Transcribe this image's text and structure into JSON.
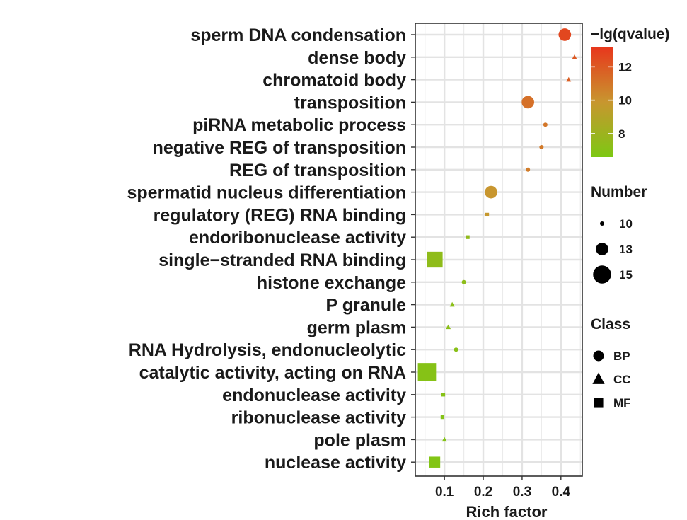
{
  "chart_data": {
    "type": "scatter",
    "xlabel": "Rich factor",
    "xticks": [
      0.1,
      0.2,
      0.3,
      0.4
    ],
    "xlim": [
      0.025,
      0.455
    ],
    "grid": true,
    "categories": [
      "sperm DNA condensation",
      "dense body",
      "chromatoid body",
      "transposition",
      "piRNA metabolic process",
      "negative REG of transposition",
      "REG of transposition",
      "spermatid nucleus differentiation",
      "regulatory (REG) RNA binding",
      "endoribonuclease activity",
      "single−stranded RNA binding",
      "histone exchange",
      "P granule",
      "germ plasm",
      "RNA Hydrolysis, endonucleolytic",
      "catalytic activity, acting on RNA",
      "endonuclease activity",
      "ribonuclease activity",
      "pole plasm",
      "nuclease activity"
    ],
    "points": [
      {
        "term": "sperm DNA condensation",
        "rich_factor": 0.41,
        "number": 13,
        "class": "BP",
        "neg_log_q": 12.6
      },
      {
        "term": "dense body",
        "rich_factor": 0.435,
        "number": 10,
        "class": "CC",
        "neg_log_q": 12.0
      },
      {
        "term": "chromatoid body",
        "rich_factor": 0.42,
        "number": 10,
        "class": "CC",
        "neg_log_q": 11.8
      },
      {
        "term": "transposition",
        "rich_factor": 0.315,
        "number": 13,
        "class": "BP",
        "neg_log_q": 11.2
      },
      {
        "term": "piRNA metabolic process",
        "rich_factor": 0.36,
        "number": 10,
        "class": "BP",
        "neg_log_q": 11.0
      },
      {
        "term": "negative REG of transposition",
        "rich_factor": 0.35,
        "number": 10,
        "class": "BP",
        "neg_log_q": 10.9
      },
      {
        "term": "REG of transposition",
        "rich_factor": 0.315,
        "number": 10,
        "class": "BP",
        "neg_log_q": 10.8
      },
      {
        "term": "spermatid nucleus differentiation",
        "rich_factor": 0.22,
        "number": 13,
        "class": "BP",
        "neg_log_q": 9.9
      },
      {
        "term": "regulatory (REG) RNA binding",
        "rich_factor": 0.21,
        "number": 10,
        "class": "MF",
        "neg_log_q": 9.8
      },
      {
        "term": "endoribonuclease activity",
        "rich_factor": 0.16,
        "number": 10,
        "class": "MF",
        "neg_log_q": 7.5
      },
      {
        "term": "single−stranded RNA binding",
        "rich_factor": 0.075,
        "number": 15,
        "class": "MF",
        "neg_log_q": 7.4
      },
      {
        "term": "histone exchange",
        "rich_factor": 0.15,
        "number": 10,
        "class": "BP",
        "neg_log_q": 7.3
      },
      {
        "term": "P granule",
        "rich_factor": 0.12,
        "number": 10,
        "class": "CC",
        "neg_log_q": 7.2
      },
      {
        "term": "germ plasm",
        "rich_factor": 0.11,
        "number": 10,
        "class": "CC",
        "neg_log_q": 7.2
      },
      {
        "term": "RNA Hydrolysis, endonucleolytic",
        "rich_factor": 0.13,
        "number": 10,
        "class": "BP",
        "neg_log_q": 7.1
      },
      {
        "term": "catalytic activity, acting on RNA",
        "rich_factor": 0.055,
        "number": 16,
        "class": "MF",
        "neg_log_q": 7.0
      },
      {
        "term": "endonuclease activity",
        "rich_factor": 0.097,
        "number": 10,
        "class": "MF",
        "neg_log_q": 7.0
      },
      {
        "term": "ribonuclease activity",
        "rich_factor": 0.095,
        "number": 10,
        "class": "MF",
        "neg_log_q": 6.9
      },
      {
        "term": "pole plasm",
        "rich_factor": 0.1,
        "number": 10,
        "class": "CC",
        "neg_log_q": 6.9
      },
      {
        "term": "nuclease activity",
        "rich_factor": 0.075,
        "number": 13,
        "class": "MF",
        "neg_log_q": 6.8
      }
    ],
    "color_legend": {
      "title": "−lg(qvalue)",
      "ticks": [
        12,
        10,
        8
      ],
      "range": [
        6.6,
        13.2
      ],
      "low_color": "#7dc813",
      "mid_color": "#c8962f",
      "high_color": "#e8361c"
    },
    "size_legend": {
      "title": "Number",
      "entries": [
        10,
        13,
        15
      ]
    },
    "class_legend": {
      "title": "Class",
      "entries": [
        {
          "label": "BP",
          "shape": "circle"
        },
        {
          "label": "CC",
          "shape": "triangle"
        },
        {
          "label": "MF",
          "shape": "square"
        }
      ]
    }
  }
}
